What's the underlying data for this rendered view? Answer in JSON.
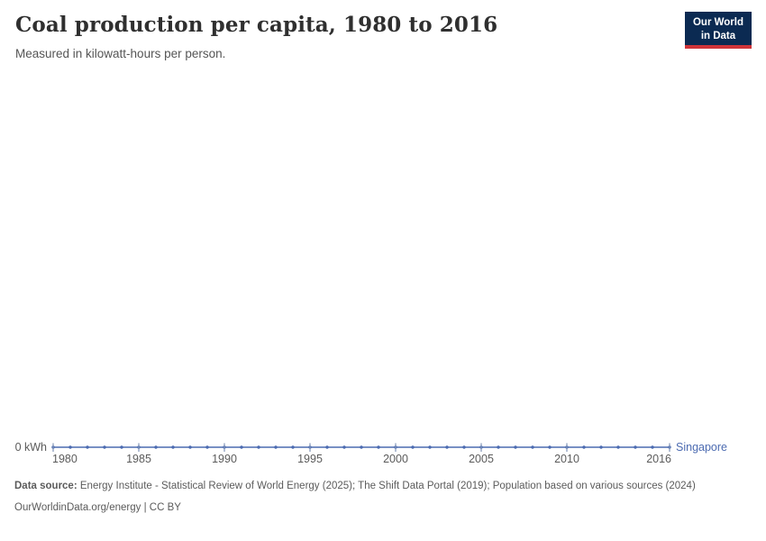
{
  "header": {
    "title": "Coal production per capita, 1980 to 2016",
    "subtitle": "Measured in kilowatt-hours per person.",
    "logo": {
      "line1": "Our World",
      "line2": "in Data"
    }
  },
  "chart_data": {
    "type": "line",
    "title": "Coal production per capita, 1980 to 2016",
    "subtitle": "Measured in kilowatt-hours per person.",
    "xlabel": "",
    "ylabel": "kWh",
    "y_zero_label": "0 kWh",
    "ylim": [
      0,
      0
    ],
    "grid": false,
    "x_range": [
      1980,
      2016
    ],
    "x_ticks": [
      1980,
      1985,
      1990,
      1995,
      2000,
      2005,
      2010,
      2016
    ],
    "legend_position": "end-of-line",
    "series": [
      {
        "name": "Singapore",
        "color": "#4c6bb1",
        "x": [
          1980,
          1981,
          1982,
          1983,
          1984,
          1985,
          1986,
          1987,
          1988,
          1989,
          1990,
          1991,
          1992,
          1993,
          1994,
          1995,
          1996,
          1997,
          1998,
          1999,
          2000,
          2001,
          2002,
          2003,
          2004,
          2005,
          2006,
          2007,
          2008,
          2009,
          2010,
          2011,
          2012,
          2013,
          2014,
          2015,
          2016
        ],
        "values": [
          0,
          0,
          0,
          0,
          0,
          0,
          0,
          0,
          0,
          0,
          0,
          0,
          0,
          0,
          0,
          0,
          0,
          0,
          0,
          0,
          0,
          0,
          0,
          0,
          0,
          0,
          0,
          0,
          0,
          0,
          0,
          0,
          0,
          0,
          0,
          0,
          0
        ]
      }
    ]
  },
  "footer": {
    "source_label": "Data source:",
    "source_text": "Energy Institute - Statistical Review of World Energy (2025); The Shift Data Portal (2019); Population based on various sources (2024)",
    "link_text": "OurWorldinData.org/energy | CC BY"
  },
  "colors": {
    "background": "#ffffff",
    "title": "#2f2f2f",
    "subtitle": "#555555",
    "axis_text": "#5b5b5b",
    "series_blue": "#4c6bb1",
    "tick_mark": "#8094b8",
    "logo_navy": "#0b2a52",
    "logo_red": "#cf3439"
  }
}
